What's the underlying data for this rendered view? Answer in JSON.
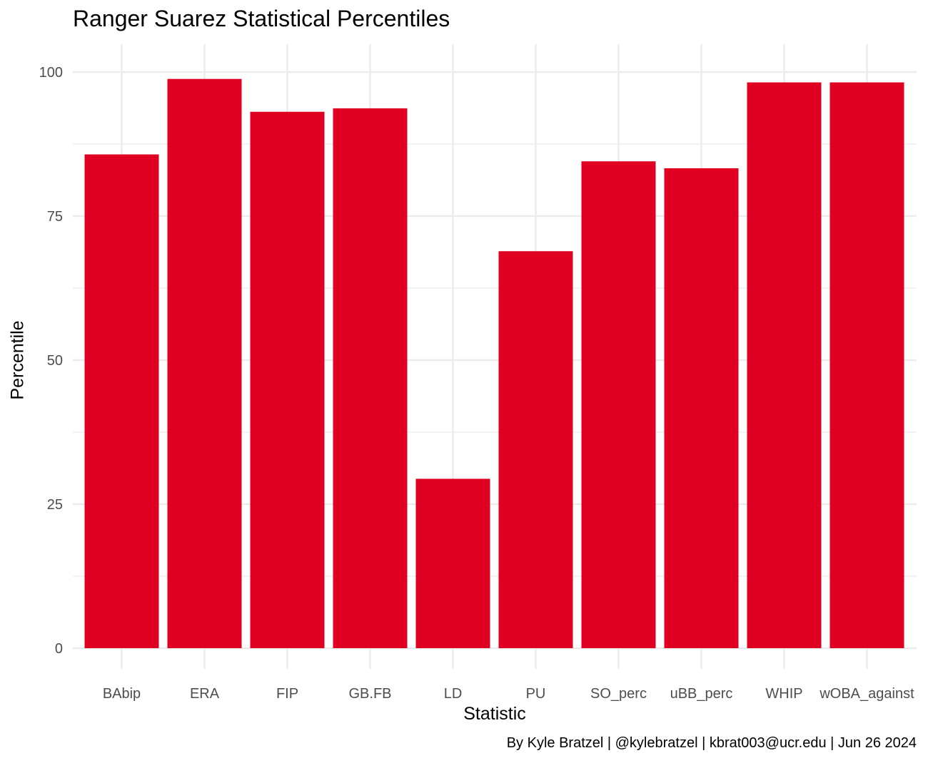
{
  "chart_data": {
    "type": "bar",
    "title": "Ranger Suarez Statistical Percentiles",
    "xlabel": "Statistic",
    "ylabel": "Percentile",
    "caption": "By Kyle Bratzel | @kylebratzel | kbrat003@ucr.edu | Jun 26 2024",
    "categories": [
      "BAbip",
      "ERA",
      "FIP",
      "GB.FB",
      "LD",
      "PU",
      "SO_perc",
      "uBB_perc",
      "WHIP",
      "wOBA_against"
    ],
    "values": [
      85.7,
      98.8,
      93.1,
      93.7,
      29.4,
      68.9,
      84.5,
      83.3,
      98.2,
      98.2
    ],
    "ylim": [
      0,
      100
    ],
    "yticks": [
      0,
      25,
      50,
      75,
      100
    ],
    "grid": true,
    "bar_color": "#DF0022",
    "grid_color": "#EBEBEB"
  }
}
